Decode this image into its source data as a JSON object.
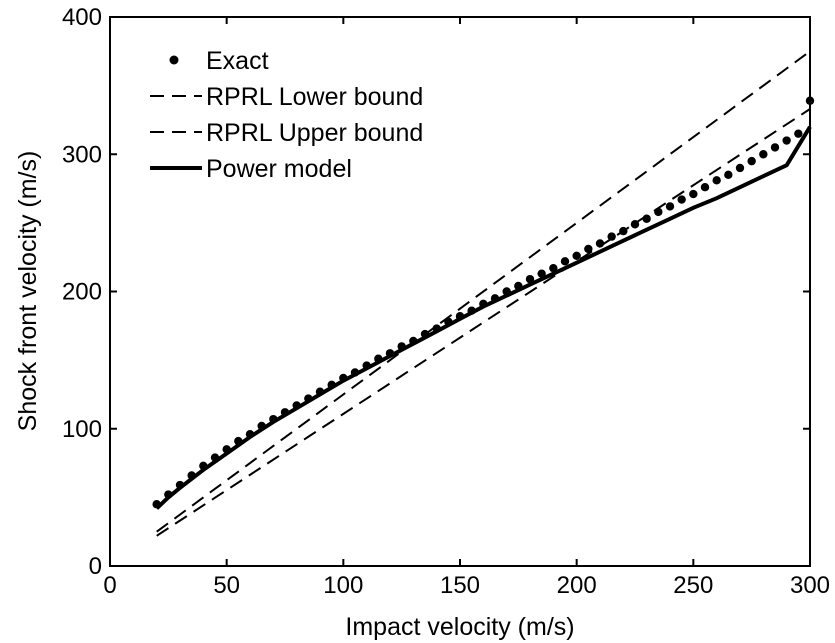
{
  "chart_data": {
    "type": "line",
    "title": "",
    "xlabel": "Impact velocity (m/s)",
    "ylabel": "Shock front velocity (m/s)",
    "xlim": [
      0,
      300
    ],
    "ylim": [
      0,
      400
    ],
    "xticks": [
      0,
      50,
      100,
      150,
      200,
      250,
      300
    ],
    "yticks": [
      0,
      100,
      200,
      300,
      400
    ],
    "grid": false,
    "legend_position": "top-left",
    "series": [
      {
        "name": "Exact",
        "style": "dots",
        "color": "#000000",
        "x": [
          20,
          25,
          30,
          35,
          40,
          45,
          50,
          55,
          60,
          65,
          70,
          75,
          80,
          85,
          90,
          95,
          100,
          105,
          110,
          115,
          120,
          125,
          130,
          135,
          140,
          145,
          150,
          155,
          160,
          165,
          170,
          175,
          180,
          185,
          190,
          195,
          200,
          205,
          210,
          215,
          220,
          225,
          230,
          235,
          240,
          245,
          250,
          255,
          260,
          265,
          270,
          275,
          280,
          285,
          290,
          295,
          300
        ],
        "y": [
          45,
          52,
          59,
          66,
          73,
          79,
          85,
          91,
          96,
          102,
          107,
          112,
          117,
          122,
          127,
          132,
          137,
          141,
          146,
          151,
          155,
          160,
          164,
          169,
          173,
          178,
          182,
          186,
          191,
          195,
          200,
          204,
          209,
          213,
          217,
          222,
          226,
          231,
          235,
          240,
          244,
          249,
          253,
          258,
          262,
          267,
          271,
          276,
          281,
          285,
          290,
          295,
          300,
          305,
          310,
          315,
          339
        ]
      },
      {
        "name": "RPRL Lower bound",
        "style": "dashed",
        "color": "#000000",
        "x": [
          20,
          300
        ],
        "y": [
          22,
          333
        ]
      },
      {
        "name": "RPRL Upper bound",
        "style": "dashed",
        "color": "#000000",
        "x": [
          20,
          300
        ],
        "y": [
          25,
          375
        ]
      },
      {
        "name": "Power model",
        "style": "solid",
        "color": "#000000",
        "x": [
          20,
          25,
          30,
          40,
          50,
          60,
          70,
          80,
          90,
          100,
          110,
          120,
          130,
          140,
          150,
          160,
          170,
          180,
          190,
          200,
          210,
          220,
          230,
          240,
          250,
          260,
          270,
          280,
          290,
          300
        ],
        "y": [
          42,
          50,
          57,
          70,
          82,
          94,
          105,
          115,
          125,
          135,
          144,
          153,
          162,
          171,
          180,
          189,
          197,
          205,
          213,
          221,
          229,
          237,
          245,
          253,
          261,
          268,
          276,
          284,
          292,
          320
        ]
      }
    ]
  }
}
